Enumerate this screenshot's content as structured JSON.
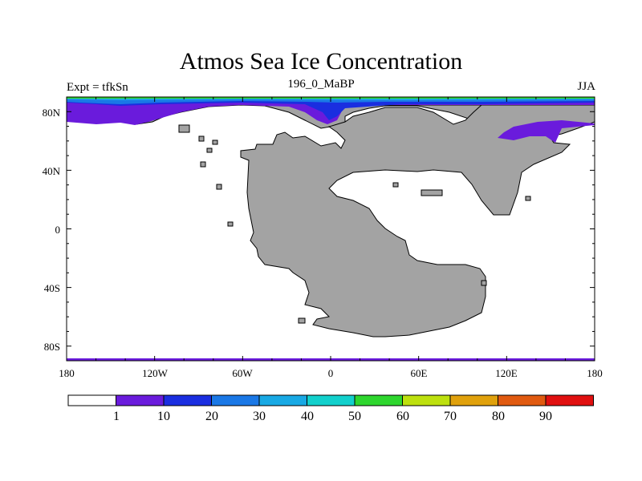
{
  "title": "Atmos Sea Ice Concentration",
  "left_string": "Expt = tfkSn",
  "center_string": "196_0_MaBP",
  "right_string": "JJA",
  "axes": {
    "x_ticks": [
      "180",
      "120W",
      "60W",
      "0",
      "60E",
      "120E",
      "180"
    ],
    "y_ticks": [
      "80N",
      "40N",
      "0",
      "40S",
      "80S"
    ]
  },
  "colorbar": {
    "colors": [
      "#ffffff",
      "#6a1bdc",
      "#1a2ee0",
      "#1a78e6",
      "#18a9e4",
      "#12d0cc",
      "#2ed62e",
      "#bde00e",
      "#e0a10c",
      "#e05a10",
      "#e01010"
    ],
    "labels": [
      "1",
      "10",
      "20",
      "30",
      "40",
      "50",
      "60",
      "70",
      "80",
      "90"
    ]
  },
  "colors": {
    "land": "#a3a3a3",
    "ice_low": "#6a1bdc",
    "ice_mid": "#1a2ee0",
    "ice_blue": "#1a78e6",
    "ice_cyan": "#18a9e4",
    "ice_green": "#2ed62e",
    "ice_yellow": "#bde00e"
  }
}
